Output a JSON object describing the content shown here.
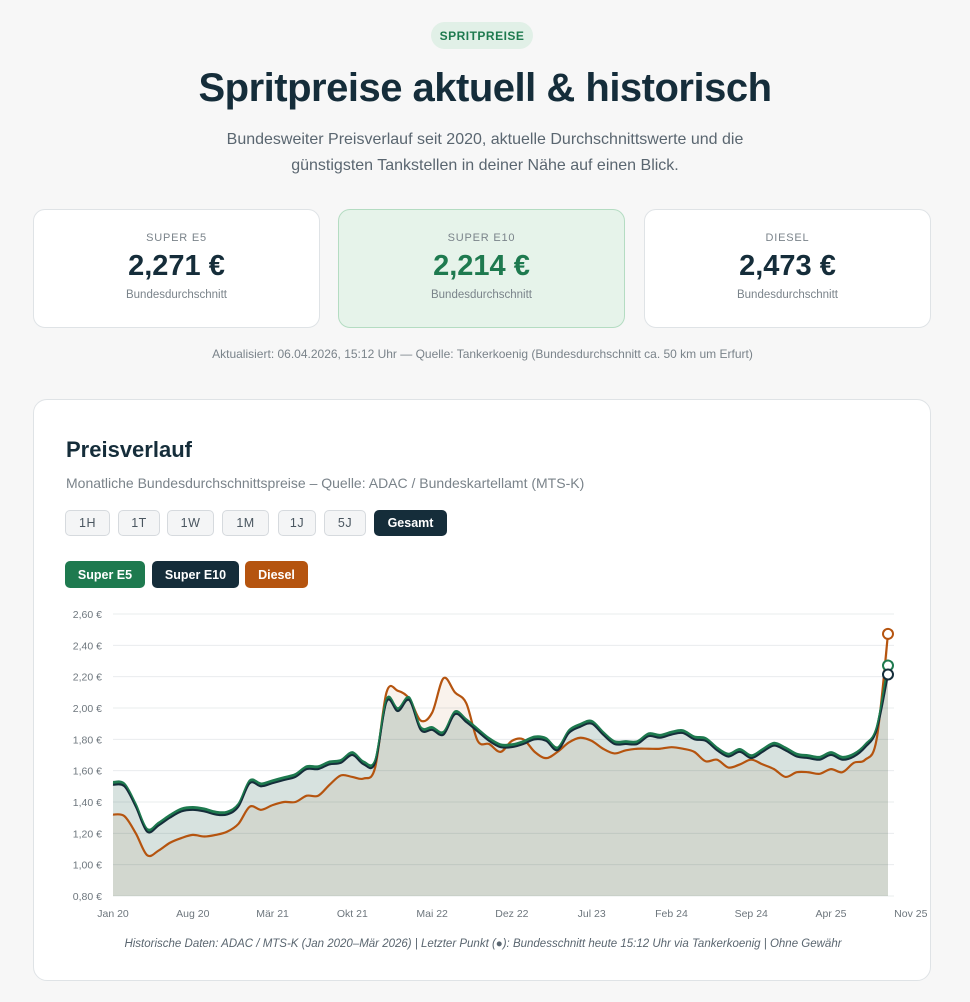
{
  "badge": "SPRITPREISE",
  "title": "Spritpreise aktuell & historisch",
  "subtitle": "Bundesweiter Preisverlauf seit 2020, aktuelle Durchschnittswerte und die günstigsten Tankstellen in deiner Nähe auf einen Blick.",
  "cards": [
    {
      "label": "SUPER E5",
      "value": "2,271 €",
      "sub": "Bundesdurchschnitt"
    },
    {
      "label": "SUPER E10",
      "value": "2,214 €",
      "sub": "Bundesdurchschnitt"
    },
    {
      "label": "DIESEL",
      "value": "2,473 €",
      "sub": "Bundesdurchschnitt"
    }
  ],
  "updated": "Aktualisiert: 06.04.2026, 15:12 Uhr — Quelle: Tankerkoenig (Bundesdurchschnitt ca. 50 km um Erfurt)",
  "panel": {
    "title": "Preisverlauf",
    "subtitle": "Monatliche Bundesdurchschnittspreise – Quelle: ADAC / Bundeskartellamt (MTS-K)",
    "ranges": [
      "1H",
      "1T",
      "1W",
      "1M",
      "1J",
      "5J",
      "Gesamt"
    ],
    "active_range": "Gesamt",
    "series_buttons": [
      "Super E5",
      "Super E10",
      "Diesel"
    ],
    "footnote": "Historische Daten: ADAC / MTS-K (Jan 2020–Mär 2026) | Letzter Punkt (●): Bundesschnitt heute 15:12 Uhr via Tankerkoenig | Ohne Gewähr"
  },
  "colors": {
    "e5": "#1e7a4f",
    "e10": "#152d3a",
    "diesel": "#b5540f"
  },
  "chart_data": {
    "type": "line",
    "ylim": [
      0.8,
      2.6
    ],
    "yticks": [
      "0,80 €",
      "1,00 €",
      "1,20 €",
      "1,40 €",
      "1,60 €",
      "1,80 €",
      "2,00 €",
      "2,20 €",
      "2,40 €",
      "2,60 €"
    ],
    "xticks": [
      "Jan 20",
      "Aug 20",
      "Mär 21",
      "Okt 21",
      "Mai 22",
      "Dez 22",
      "Jul 23",
      "Feb 24",
      "Sep 24",
      "Apr 25",
      "Nov 25"
    ],
    "x_start": "2020-01",
    "x_end": "2026-04",
    "series": [
      {
        "name": "Super E5",
        "values": [
          1.52,
          1.51,
          1.38,
          1.22,
          1.26,
          1.31,
          1.35,
          1.36,
          1.35,
          1.33,
          1.33,
          1.38,
          1.53,
          1.51,
          1.53,
          1.55,
          1.57,
          1.62,
          1.62,
          1.65,
          1.66,
          1.71,
          1.65,
          1.66,
          2.05,
          1.99,
          2.06,
          1.87,
          1.87,
          1.84,
          1.97,
          1.92,
          1.86,
          1.8,
          1.76,
          1.76,
          1.78,
          1.81,
          1.8,
          1.74,
          1.85,
          1.89,
          1.91,
          1.84,
          1.78,
          1.78,
          1.78,
          1.83,
          1.82,
          1.84,
          1.85,
          1.81,
          1.8,
          1.74,
          1.7,
          1.73,
          1.69,
          1.73,
          1.77,
          1.74,
          1.7,
          1.69,
          1.68,
          1.71,
          1.68,
          1.7,
          1.76,
          1.87,
          2.271
        ]
      },
      {
        "name": "Super E10",
        "values": [
          1.51,
          1.5,
          1.37,
          1.21,
          1.25,
          1.3,
          1.34,
          1.35,
          1.34,
          1.32,
          1.32,
          1.37,
          1.52,
          1.5,
          1.52,
          1.54,
          1.56,
          1.61,
          1.61,
          1.64,
          1.65,
          1.7,
          1.64,
          1.65,
          2.04,
          1.98,
          2.05,
          1.86,
          1.86,
          1.83,
          1.96,
          1.91,
          1.85,
          1.79,
          1.75,
          1.75,
          1.77,
          1.8,
          1.79,
          1.73,
          1.84,
          1.88,
          1.9,
          1.83,
          1.77,
          1.77,
          1.77,
          1.82,
          1.81,
          1.83,
          1.84,
          1.8,
          1.79,
          1.73,
          1.69,
          1.72,
          1.68,
          1.72,
          1.76,
          1.73,
          1.69,
          1.68,
          1.67,
          1.7,
          1.67,
          1.69,
          1.75,
          1.86,
          2.214
        ]
      },
      {
        "name": "Diesel",
        "values": [
          1.32,
          1.31,
          1.2,
          1.06,
          1.09,
          1.14,
          1.17,
          1.19,
          1.18,
          1.19,
          1.21,
          1.26,
          1.37,
          1.35,
          1.38,
          1.4,
          1.4,
          1.44,
          1.44,
          1.51,
          1.57,
          1.56,
          1.55,
          1.62,
          2.1,
          2.11,
          2.06,
          1.92,
          1.97,
          2.19,
          2.1,
          2.03,
          1.79,
          1.77,
          1.72,
          1.79,
          1.8,
          1.72,
          1.68,
          1.72,
          1.78,
          1.81,
          1.79,
          1.74,
          1.71,
          1.73,
          1.74,
          1.74,
          1.74,
          1.75,
          1.74,
          1.72,
          1.66,
          1.67,
          1.62,
          1.64,
          1.67,
          1.64,
          1.61,
          1.56,
          1.59,
          1.59,
          1.58,
          1.61,
          1.59,
          1.65,
          1.67,
          1.8,
          2.473
        ]
      }
    ],
    "legend": "top-left",
    "grid": true
  }
}
